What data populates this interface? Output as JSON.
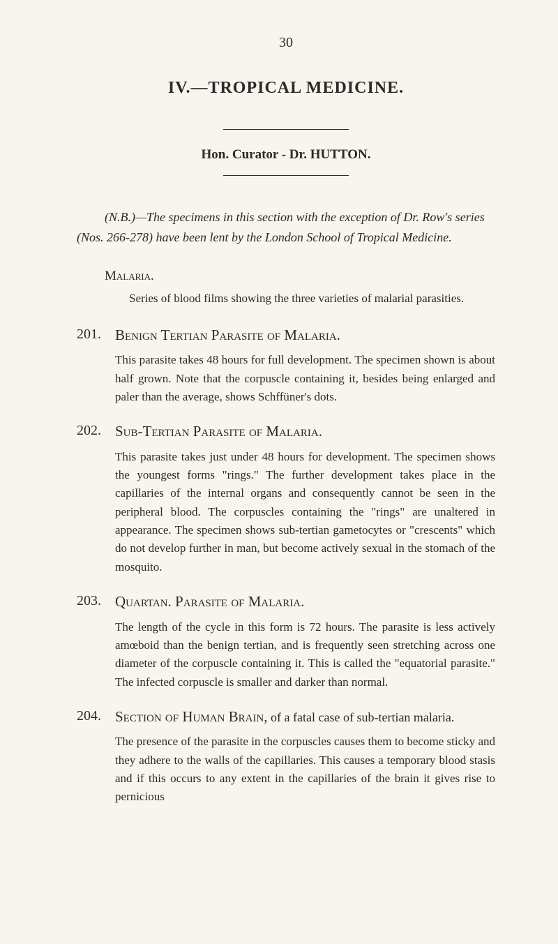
{
  "page_number": "30",
  "chapter": "IV.—TROPICAL MEDICINE.",
  "curator": "Hon. Curator - Dr. HUTTON.",
  "nb_text": "(N.B.)—The specimens in this section with the exception of Dr. Row's series (Nos. 266-278) have been lent by the London School of Tropical Medicine.",
  "malaria_heading": "Malaria.",
  "malaria_body": "Series of blood films showing the three varieties of malarial parasities.",
  "entries": [
    {
      "num": "201.",
      "title": "Benign Tertian Parasite of Malaria.",
      "body": "This parasite takes 48 hours for full development. The specimen shown is about half grown. Note that the corpuscle containing it, besides being enlarged and paler than the average, shows Schffüner's dots."
    },
    {
      "num": "202.",
      "title": "Sub-Tertian Parasite of Malaria.",
      "body": "This parasite takes just under 48 hours for development. The specimen shows the youngest forms \"rings.\" The further development takes place in the capillaries of the internal organs and consequently cannot be seen in the peripheral blood. The corpuscles containing the \"rings\" are unaltered in appearance. The specimen shows sub-tertian gametocytes or \"crescents\" which do not develop further in man, but become actively sexual in the stomach of the mosquito."
    },
    {
      "num": "203.",
      "title": "Quartan. Parasite of Malaria.",
      "body": "The length of the cycle in this form is 72 hours. The parasite is less actively amœboid than the benign tertian, and is frequently seen stretching across one diameter of the corpuscle containing it. This is called the \"equatorial parasite.\" The infected corpuscle is smaller and darker than normal."
    },
    {
      "num": "204.",
      "title_part1": "Section of Human Brain,",
      "title_part2": " of a fatal case of sub-tertian malaria.",
      "body": "The presence of the parasite in the corpuscles causes them to become sticky and they adhere to the walls of the capillaries. This causes a temporary blood stasis and if this occurs to any extent in the capillaries of the brain it gives rise to pernicious"
    }
  ],
  "colors": {
    "background": "#f8f5ee",
    "text": "#2a2a28"
  },
  "typography": {
    "body_fontsize": 17,
    "title_fontsize": 24,
    "entry_title_fontsize": 21,
    "font_family": "Georgia, Times New Roman, serif"
  }
}
